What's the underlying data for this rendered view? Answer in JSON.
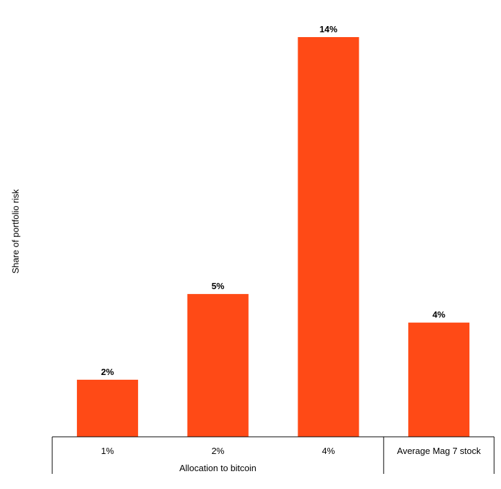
{
  "chart_data": {
    "type": "bar",
    "ylabel": "Share of portfolio risk",
    "group_label": "Allocation to bitcoin",
    "categories": [
      "1%",
      "2%",
      "4%",
      "Average Mag 7 stock"
    ],
    "values": [
      2,
      5,
      14,
      4
    ],
    "value_labels": [
      "2%",
      "5%",
      "14%",
      "4%"
    ],
    "ylim": [
      0,
      15
    ],
    "grid": false,
    "legend": "none",
    "bar_color": "#ff4a16",
    "axis_color": "#000000"
  }
}
